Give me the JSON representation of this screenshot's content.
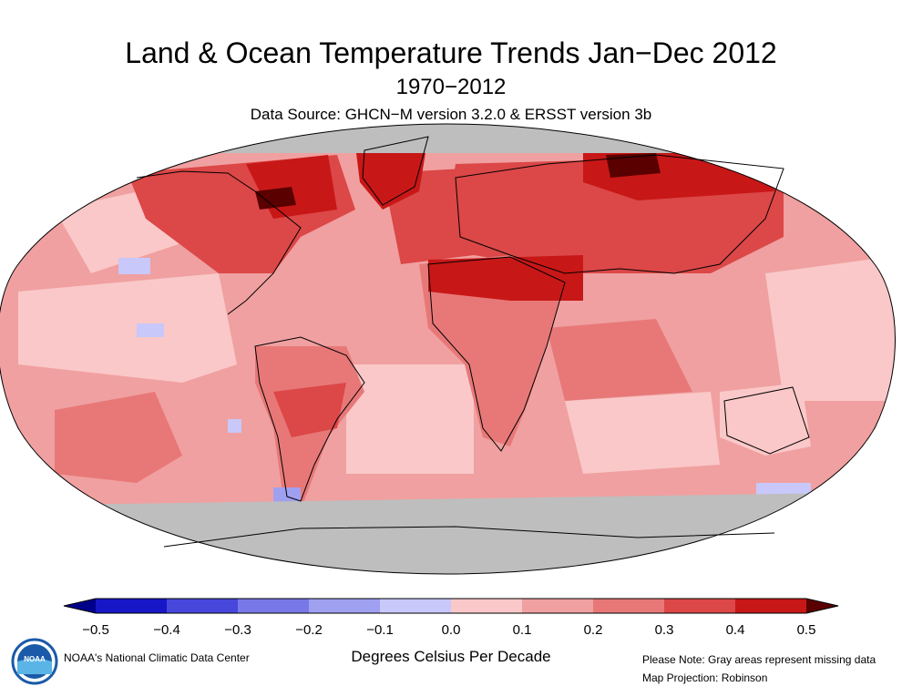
{
  "title": "Land & Ocean Temperature Trends Jan−Dec 2012",
  "subtitle": "1970−2012",
  "data_source": "Data Source: GHCN−M version 3.2.0 & ERSST version 3b",
  "map": {
    "projection_label": "Map Projection: Robinson",
    "missing_color": "#bebebe",
    "coastline_color": "#000000",
    "regions": [
      {
        "name": "north-pacific",
        "trend": 0.1
      },
      {
        "name": "central-pacific",
        "trend": 0.1
      },
      {
        "name": "south-pacific",
        "trend": 0.2
      },
      {
        "name": "north-atlantic",
        "trend": 0.3
      },
      {
        "name": "south-atlantic",
        "trend": 0.1
      },
      {
        "name": "indian-ocean",
        "trend": 0.2
      },
      {
        "name": "southern-ocean",
        "trend": 0.1
      },
      {
        "name": "north-america",
        "trend": 0.3
      },
      {
        "name": "canadian-arctic",
        "trend": 0.4
      },
      {
        "name": "greenland",
        "trend": 0.4
      },
      {
        "name": "south-america",
        "trend": 0.2
      },
      {
        "name": "europe",
        "trend": 0.3
      },
      {
        "name": "africa",
        "trend": 0.2
      },
      {
        "name": "sahara-arabia",
        "trend": 0.4
      },
      {
        "name": "asia",
        "trend": 0.3
      },
      {
        "name": "siberia",
        "trend": 0.4
      },
      {
        "name": "australia",
        "trend": 0.1
      },
      {
        "name": "antarctica",
        "trend": null
      }
    ]
  },
  "colorbar": {
    "title": "Degrees Celsius Per Decade",
    "ticks": [
      "−0.5",
      "−0.4",
      "−0.3",
      "−0.2",
      "−0.1",
      "0.0",
      "0.1",
      "0.2",
      "0.3",
      "0.4",
      "0.5"
    ],
    "colors": [
      "#1717c8",
      "#4747dc",
      "#7878e8",
      "#a0a0f0",
      "#c8c8fa",
      "#fac8c8",
      "#f0a0a0",
      "#e87878",
      "#dc4747",
      "#c81717"
    ],
    "under_color": "#00008b",
    "over_color": "#5a0000"
  },
  "credit": "NOAA's National Climatic Data Center",
  "note": "Please Note: Gray areas represent missing data",
  "logo_text": "NOAA"
}
